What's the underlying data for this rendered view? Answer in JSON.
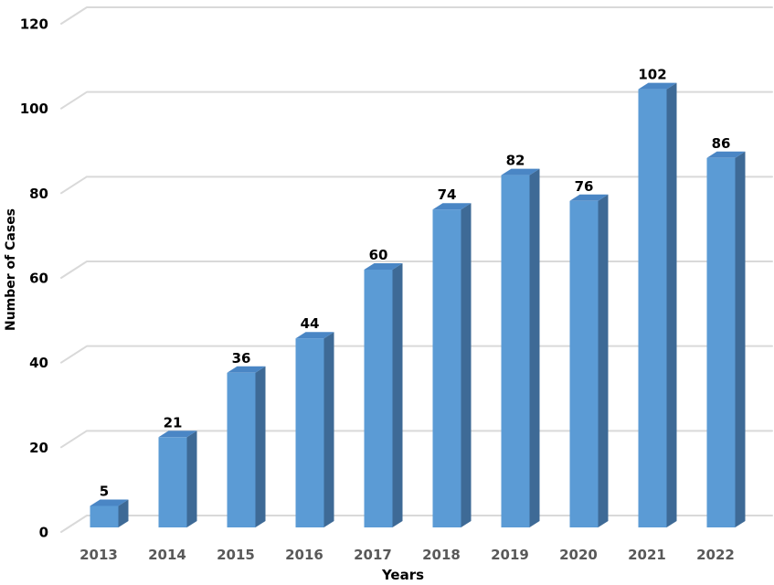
{
  "chart_data": {
    "type": "bar",
    "style": "3d-column",
    "title": "",
    "xlabel": "Years",
    "ylabel": "Number of Cases",
    "categories": [
      "2013",
      "2014",
      "2015",
      "2016",
      "2017",
      "2018",
      "2019",
      "2020",
      "2021",
      "2022"
    ],
    "values": [
      5,
      21,
      36,
      44,
      60,
      74,
      82,
      76,
      102,
      86
    ],
    "ylim": [
      0,
      120
    ],
    "yticks": [
      0,
      20,
      40,
      60,
      80,
      100,
      120
    ],
    "grid": true,
    "legend": "none",
    "colors": {
      "bar_front": "#5B9BD5",
      "bar_top": "#4A86C5",
      "bar_side": "#3E6A96",
      "gridline": "#D9D9D9",
      "data_label": "#000000",
      "y_tick_label": "#000000",
      "x_tick_label": "#595959",
      "axis_title": "#000000",
      "background": "#FFFFFF"
    }
  }
}
